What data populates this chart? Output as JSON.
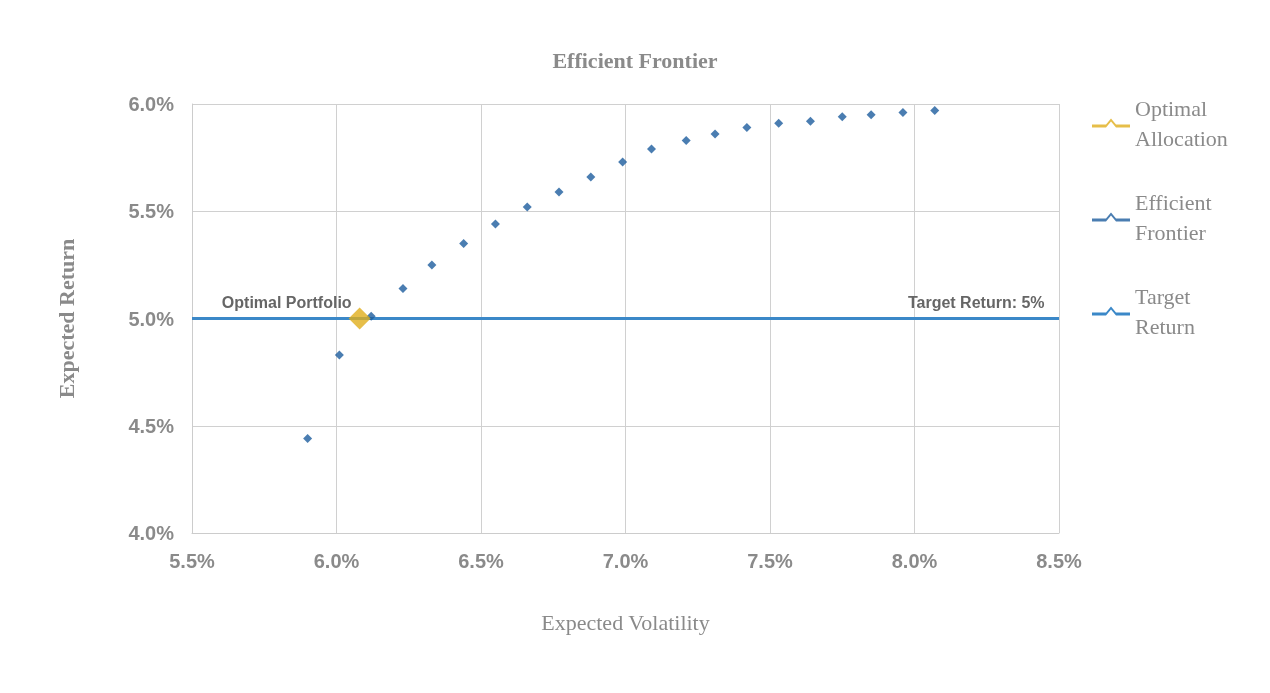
{
  "chart_data": {
    "type": "scatter",
    "title": "Efficient Frontier",
    "xlabel": "Expected Volatility",
    "ylabel": "Expected Return",
    "xlim": [
      5.5,
      8.5
    ],
    "xticks": [
      {
        "value": 5.5,
        "label": "5.5%"
      },
      {
        "value": 6.0,
        "label": "6.0%"
      },
      {
        "value": 6.5,
        "label": "6.5%"
      },
      {
        "value": 7.0,
        "label": "7.0%"
      },
      {
        "value": 7.5,
        "label": "7.5%"
      },
      {
        "value": 8.0,
        "label": "8.0%"
      },
      {
        "value": 8.5,
        "label": "8.5%"
      }
    ],
    "ylim": [
      4.0,
      6.0
    ],
    "yticks": [
      {
        "value": 4.0,
        "label": "4.0%"
      },
      {
        "value": 4.5,
        "label": "4.5%"
      },
      {
        "value": 5.0,
        "label": "5.0%"
      },
      {
        "value": 5.5,
        "label": "5.5%"
      },
      {
        "value": 6.0,
        "label": "6.0%"
      }
    ],
    "grid": true,
    "legend": "right",
    "marker": "diamond",
    "series": [
      {
        "name": "Optimal Allocation",
        "color": "#e0ae1c",
        "x": [
          6.08
        ],
        "values": [
          5.0
        ]
      },
      {
        "name": "Efficient Frontier",
        "color": "#1d5c9e",
        "x": [
          5.9,
          6.01,
          6.12,
          6.23,
          6.33,
          6.44,
          6.55,
          6.66,
          6.77,
          6.88,
          6.99,
          7.09,
          7.21,
          7.31,
          7.42,
          7.53,
          7.64,
          7.75,
          7.85,
          7.96,
          8.07
        ],
        "values": [
          4.44,
          4.83,
          5.01,
          5.14,
          5.25,
          5.35,
          5.44,
          5.52,
          5.59,
          5.66,
          5.73,
          5.79,
          5.83,
          5.86,
          5.89,
          5.91,
          5.92,
          5.94,
          5.95,
          5.96,
          5.97
        ]
      },
      {
        "name": "Target Return",
        "type": "line",
        "marker": "none",
        "color": "#3b88c8",
        "x": [
          5.5,
          8.5
        ],
        "values": [
          5.0,
          5.0
        ]
      }
    ],
    "annotations": [
      {
        "text": "Optimal Portfolio",
        "x": 6.08,
        "y": 5.0
      },
      {
        "text": "Target Return: 5%",
        "x": 8.45,
        "y": 5.0
      }
    ]
  }
}
